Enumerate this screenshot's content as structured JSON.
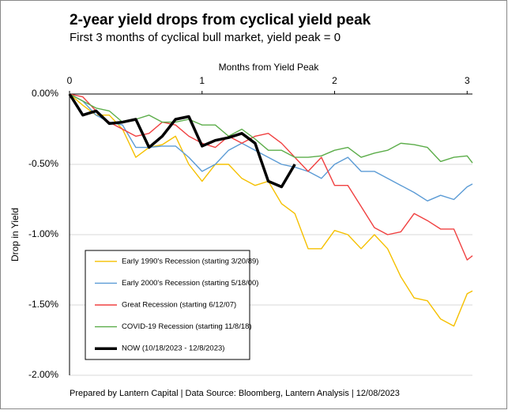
{
  "chart_data": {
    "type": "line",
    "title": "2-year yield drops from cyclical yield peak",
    "subtitle": "First 3 months of cyclical bull market, yield peak = 0",
    "xlabel": "Months from Yield Peak",
    "ylabel": "Drop in Yield",
    "footer": "Prepared by Lantern Capital | Data Source: Bloomberg, Lantern Analysis | 12/08/2023",
    "xlim": [
      0,
      3.04
    ],
    "ylim": [
      -2,
      0
    ],
    "xticks": [
      0,
      1,
      2,
      3
    ],
    "yticks": [
      {
        "value": 0,
        "label": "0.00%"
      },
      {
        "value": -0.5,
        "label": "-0.50%"
      },
      {
        "value": -1,
        "label": "-1.00%"
      },
      {
        "value": -1.5,
        "label": "-1.50%"
      },
      {
        "value": -2,
        "label": "-2.00%"
      }
    ],
    "grid": true,
    "legend": "lower left",
    "series": [
      {
        "name": "Early 1990's Recession (starting 3/20/89)",
        "color": "#f5c000",
        "x": [
          0,
          0.1,
          0.2,
          0.3,
          0.4,
          0.5,
          0.6,
          0.7,
          0.8,
          0.9,
          1.0,
          1.1,
          1.2,
          1.3,
          1.4,
          1.5,
          1.6,
          1.7,
          1.8,
          1.9,
          2.0,
          2.1,
          2.2,
          2.3,
          2.4,
          2.5,
          2.6,
          2.7,
          2.8,
          2.9,
          3.0,
          3.04
        ],
        "values": [
          0,
          -0.08,
          -0.15,
          -0.15,
          -0.25,
          -0.45,
          -0.38,
          -0.36,
          -0.3,
          -0.5,
          -0.62,
          -0.5,
          -0.5,
          -0.6,
          -0.65,
          -0.62,
          -0.78,
          -0.85,
          -1.1,
          -1.1,
          -0.97,
          -1.0,
          -1.1,
          -1.0,
          -1.1,
          -1.3,
          -1.45,
          -1.47,
          -1.6,
          -1.65,
          -1.42,
          -1.4
        ]
      },
      {
        "name": "Early 2000's Recession (starting 5/18/00)",
        "color": "#5b9bd5",
        "x": [
          0,
          0.1,
          0.2,
          0.3,
          0.4,
          0.5,
          0.6,
          0.7,
          0.8,
          0.9,
          1.0,
          1.1,
          1.2,
          1.3,
          1.4,
          1.5,
          1.6,
          1.7,
          1.8,
          1.9,
          2.0,
          2.1,
          2.2,
          2.3,
          2.4,
          2.5,
          2.6,
          2.7,
          2.8,
          2.9,
          3.0,
          3.04
        ],
        "values": [
          0,
          -0.05,
          -0.15,
          -0.2,
          -0.22,
          -0.38,
          -0.38,
          -0.37,
          -0.37,
          -0.45,
          -0.55,
          -0.5,
          -0.4,
          -0.35,
          -0.4,
          -0.45,
          -0.5,
          -0.52,
          -0.55,
          -0.6,
          -0.5,
          -0.45,
          -0.55,
          -0.55,
          -0.6,
          -0.65,
          -0.7,
          -0.76,
          -0.72,
          -0.75,
          -0.66,
          -0.64
        ]
      },
      {
        "name": "Great Recession (starting 6/12/07)",
        "color": "#f04040",
        "x": [
          0,
          0.1,
          0.2,
          0.3,
          0.4,
          0.5,
          0.6,
          0.7,
          0.8,
          0.9,
          1.0,
          1.1,
          1.2,
          1.3,
          1.4,
          1.5,
          1.6,
          1.7,
          1.8,
          1.9,
          2.0,
          2.1,
          2.2,
          2.3,
          2.4,
          2.5,
          2.6,
          2.7,
          2.8,
          2.9,
          3.0,
          3.04
        ],
        "values": [
          0,
          -0.02,
          -0.12,
          -0.2,
          -0.25,
          -0.3,
          -0.28,
          -0.2,
          -0.22,
          -0.3,
          -0.35,
          -0.38,
          -0.3,
          -0.35,
          -0.3,
          -0.28,
          -0.35,
          -0.45,
          -0.55,
          -0.45,
          -0.65,
          -0.65,
          -0.8,
          -0.95,
          -1.0,
          -0.98,
          -0.85,
          -0.9,
          -0.96,
          -0.96,
          -1.18,
          -1.15
        ]
      },
      {
        "name": "COVID-19 Recession (starting 11/8/18)",
        "color": "#5cad4a",
        "x": [
          0,
          0.1,
          0.2,
          0.3,
          0.4,
          0.5,
          0.6,
          0.7,
          0.8,
          0.9,
          1.0,
          1.1,
          1.2,
          1.3,
          1.4,
          1.5,
          1.6,
          1.7,
          1.8,
          1.9,
          2.0,
          2.1,
          2.2,
          2.3,
          2.4,
          2.5,
          2.6,
          2.7,
          2.8,
          2.9,
          3.0,
          3.04
        ],
        "values": [
          0,
          -0.05,
          -0.1,
          -0.12,
          -0.2,
          -0.18,
          -0.15,
          -0.2,
          -0.2,
          -0.18,
          -0.22,
          -0.22,
          -0.3,
          -0.25,
          -0.32,
          -0.4,
          -0.4,
          -0.45,
          -0.45,
          -0.44,
          -0.4,
          -0.38,
          -0.45,
          -0.42,
          -0.4,
          -0.35,
          -0.36,
          -0.38,
          -0.48,
          -0.45,
          -0.44,
          -0.49
        ]
      },
      {
        "name": "NOW (10/18/2023 - 12/8/2023)",
        "color": "#000000",
        "x": [
          0,
          0.1,
          0.2,
          0.3,
          0.4,
          0.5,
          0.6,
          0.7,
          0.8,
          0.9,
          1.0,
          1.1,
          1.2,
          1.3,
          1.4,
          1.5,
          1.6,
          1.7
        ],
        "values": [
          0,
          -0.15,
          -0.12,
          -0.21,
          -0.2,
          -0.18,
          -0.38,
          -0.3,
          -0.18,
          -0.16,
          -0.37,
          -0.33,
          -0.31,
          -0.28,
          -0.35,
          -0.62,
          -0.66,
          -0.5
        ]
      }
    ]
  }
}
